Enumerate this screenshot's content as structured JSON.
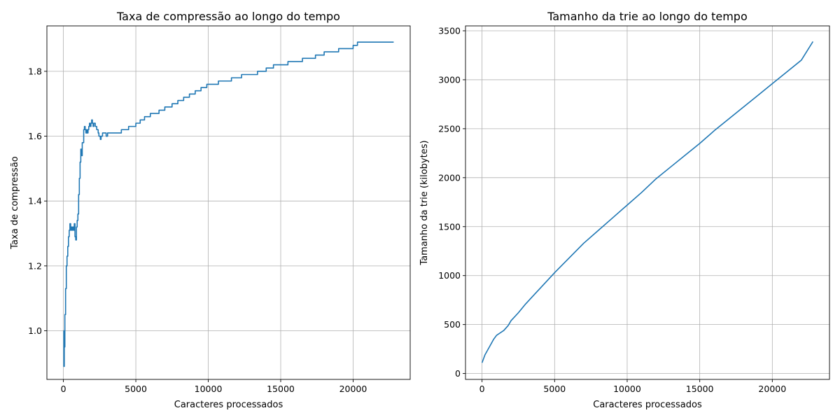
{
  "chart_data": [
    {
      "type": "line",
      "title": "Taxa de compressão ao longo do tempo",
      "xlabel": "Caracteres processados",
      "ylabel": "Taxa de compressão",
      "xlim": [
        -1140,
        23940
      ],
      "ylim": [
        0.85,
        1.94
      ],
      "xticks": [
        0,
        5000,
        10000,
        15000,
        20000
      ],
      "xtick_labels": [
        "0",
        "5000",
        "10000",
        "15000",
        "20000"
      ],
      "yticks": [
        1.0,
        1.2,
        1.4,
        1.6,
        1.8
      ],
      "ytick_labels": [
        "1.0",
        "1.2",
        "1.4",
        "1.6",
        "1.8"
      ],
      "grid": true,
      "step": true,
      "color": "#1f77b4",
      "x": [
        0,
        30,
        60,
        100,
        150,
        200,
        250,
        300,
        350,
        400,
        450,
        500,
        550,
        600,
        650,
        700,
        750,
        800,
        850,
        900,
        950,
        1000,
        1050,
        1100,
        1150,
        1200,
        1250,
        1300,
        1400,
        1450,
        1500,
        1550,
        1600,
        1650,
        1700,
        1750,
        1800,
        1850,
        1900,
        1950,
        2000,
        2050,
        2100,
        2200,
        2300,
        2400,
        2450,
        2500,
        2550,
        2600,
        2700,
        2750,
        2800,
        2850,
        2900,
        2950,
        3000,
        3050,
        3200,
        4000,
        4500,
        5000,
        5300,
        5600,
        6000,
        6600,
        7000,
        7500,
        7900,
        8300,
        8700,
        9100,
        9500,
        9900,
        10700,
        11600,
        12300,
        13400,
        14000,
        14500,
        15500,
        16500,
        17400,
        18000,
        19000,
        20000,
        20300,
        21000,
        21700,
        22400,
        22800
      ],
      "y": [
        1.0,
        0.89,
        0.95,
        1.05,
        1.13,
        1.2,
        1.23,
        1.26,
        1.29,
        1.31,
        1.33,
        1.31,
        1.32,
        1.31,
        1.32,
        1.31,
        1.33,
        1.29,
        1.28,
        1.32,
        1.34,
        1.36,
        1.42,
        1.47,
        1.52,
        1.56,
        1.54,
        1.58,
        1.62,
        1.63,
        1.62,
        1.61,
        1.62,
        1.61,
        1.62,
        1.63,
        1.64,
        1.63,
        1.64,
        1.65,
        1.64,
        1.63,
        1.64,
        1.63,
        1.62,
        1.61,
        1.6,
        1.6,
        1.59,
        1.6,
        1.61,
        1.61,
        1.61,
        1.61,
        1.61,
        1.6,
        1.6,
        1.61,
        1.61,
        1.62,
        1.63,
        1.64,
        1.65,
        1.66,
        1.67,
        1.68,
        1.69,
        1.7,
        1.71,
        1.72,
        1.73,
        1.74,
        1.75,
        1.76,
        1.77,
        1.78,
        1.79,
        1.8,
        1.81,
        1.82,
        1.83,
        1.84,
        1.85,
        1.86,
        1.87,
        1.88,
        1.89,
        1.89,
        1.89,
        1.89,
        1.89
      ]
    },
    {
      "type": "line",
      "title": "Tamanho da trie ao longo do tempo",
      "xlabel": "Caracteres processados",
      "ylabel": "Tamanho da trie (kilobytes)",
      "xlim": [
        -1140,
        23940
      ],
      "ylim": [
        -60,
        3550
      ],
      "xticks": [
        0,
        5000,
        10000,
        15000,
        20000
      ],
      "xtick_labels": [
        "0",
        "5000",
        "10000",
        "15000",
        "20000"
      ],
      "yticks": [
        0,
        500,
        1000,
        1500,
        2000,
        2500,
        3000,
        3500
      ],
      "ytick_labels": [
        "0",
        "500",
        "1000",
        "1500",
        "2000",
        "2500",
        "3000",
        "3500"
      ],
      "grid": true,
      "step": false,
      "color": "#1f77b4",
      "x": [
        0,
        200,
        500,
        800,
        1000,
        1200,
        1500,
        1800,
        2000,
        2500,
        3000,
        3500,
        4000,
        5000,
        6000,
        7000,
        8000,
        9000,
        10000,
        11000,
        12000,
        13000,
        14000,
        15000,
        16000,
        17000,
        18000,
        19000,
        20000,
        21000,
        22000,
        22800
      ],
      "y": [
        110,
        190,
        270,
        350,
        390,
        410,
        440,
        490,
        540,
        620,
        710,
        790,
        870,
        1030,
        1180,
        1330,
        1460,
        1590,
        1720,
        1850,
        1990,
        2110,
        2230,
        2350,
        2480,
        2600,
        2720,
        2840,
        2960,
        3080,
        3200,
        3390
      ]
    }
  ]
}
